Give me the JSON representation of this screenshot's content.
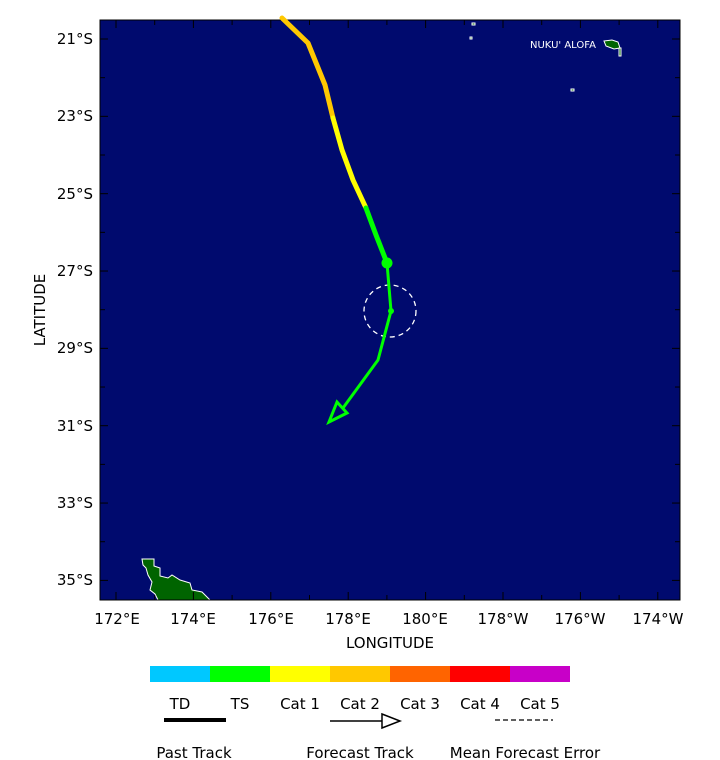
{
  "axes": {
    "xlabel": "LONGITUDE",
    "ylabel": "LATITUDE",
    "lon_ticks": [
      "172°E",
      "174°E",
      "176°E",
      "178°E",
      "180°E",
      "178°W",
      "176°W",
      "174°W"
    ],
    "lat_ticks": [
      "21°S",
      "23°S",
      "25°S",
      "27°S",
      "29°S",
      "31°S",
      "33°S",
      "35°S"
    ]
  },
  "place_label": "NUKU' ALOFA",
  "colors": {
    "ocean": "#000a6e",
    "land": "#006400",
    "TD": "#00c8ff",
    "TS": "#00ff00",
    "Cat 1": "#ffff00",
    "Cat 2": "#ffc800",
    "Cat 3": "#ff6400",
    "Cat 4": "#ff0000",
    "Cat 5": "#c800c8"
  },
  "legend": {
    "categories": [
      "TD",
      "TS",
      "Cat 1",
      "Cat 2",
      "Cat 3",
      "Cat 4",
      "Cat 5"
    ],
    "past_track": "Past Track",
    "forecast_track": "Forecast Track",
    "mean_error": "Mean Forecast Error"
  }
}
